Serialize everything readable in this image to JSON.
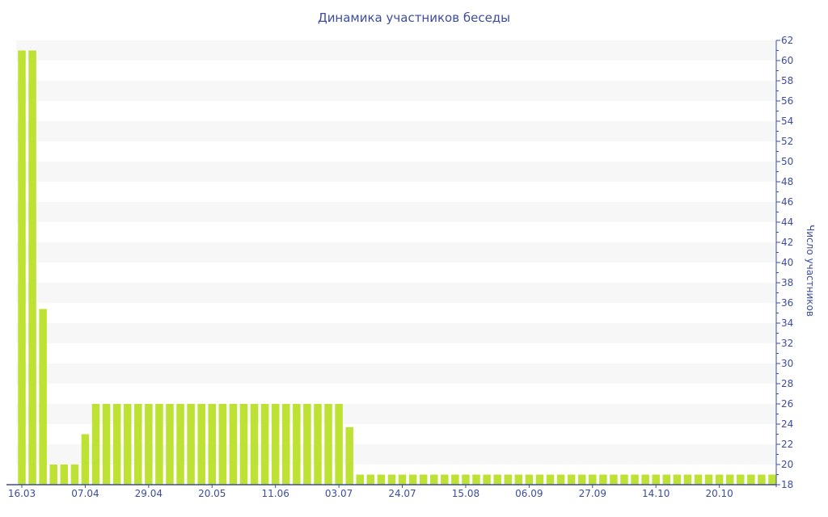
{
  "chart_data": {
    "type": "bar",
    "title": "Динамика участников беседы",
    "xlabel": "",
    "ylabel": "Число участников",
    "ylim": [
      18,
      62
    ],
    "y_axis_side": "right",
    "ytick_step": 2,
    "grid": "alternating horizontal bands",
    "bar_color": "#bde233",
    "axis_color": "#3d4c9e",
    "xtick_labels": [
      "16.03",
      "07.04",
      "29.04",
      "20.05",
      "11.06",
      "03.07",
      "24.07",
      "15.08",
      "06.09",
      "27.09",
      "14.10",
      "20.10"
    ],
    "xtick_every_n_bars": 6,
    "values": [
      61,
      61,
      35.4,
      20,
      20,
      20,
      23,
      26,
      26,
      26,
      26,
      26,
      26,
      26,
      26,
      26,
      26,
      26,
      26,
      26,
      26,
      26,
      26,
      26,
      26,
      26,
      26,
      26,
      26,
      26,
      26,
      23.7,
      19,
      19,
      19,
      19,
      19,
      19,
      19,
      19,
      19,
      19,
      19,
      19,
      19,
      19,
      19,
      19,
      19,
      19,
      19,
      19,
      19,
      19,
      19,
      19,
      19,
      19,
      19,
      19,
      19,
      19,
      19,
      19,
      19,
      19,
      19,
      19,
      19,
      19,
      19,
      19
    ]
  }
}
